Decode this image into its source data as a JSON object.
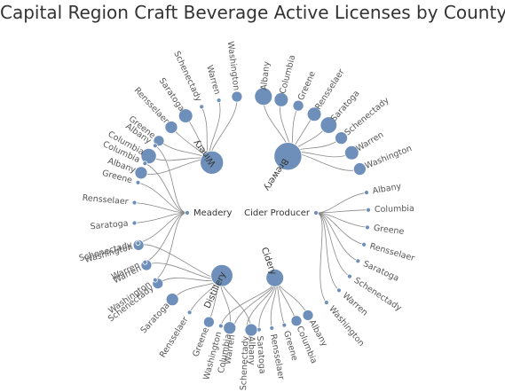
{
  "chart_data": {
    "type": "radial-tree",
    "title": "Capital Region Craft Beverage Active Licenses by County",
    "colors": {
      "node": "#6d8fb9",
      "node_stroke": "#ffffff",
      "link": "#888888"
    },
    "groups": [
      {
        "name": "Winery",
        "counties": [
          "Albany",
          "Columbia",
          "Greene",
          "Rensselaer",
          "Saratoga",
          "Schenectady",
          "Warren",
          "Washington"
        ],
        "values": [
          3,
          5,
          2,
          3,
          4,
          1,
          1,
          2
        ]
      },
      {
        "name": "Brewery",
        "counties": [
          "Albany",
          "Columbia",
          "Greene",
          "Rensselaer",
          "Saratoga",
          "Schenectady",
          "Warren",
          "Washington"
        ],
        "values": [
          7,
          4,
          2,
          4,
          6,
          3,
          4,
          3
        ]
      },
      {
        "name": "Cider Producer",
        "counties": [
          "Albany",
          "Columbia",
          "Greene",
          "Rensselaer",
          "Saratoga",
          "Schenectady",
          "Warren",
          "Washington"
        ],
        "values": [
          1,
          1,
          1,
          1,
          1,
          1,
          1,
          1
        ]
      },
      {
        "name": "Cidery",
        "counties": [
          "Albany",
          "Columbia",
          "Greene",
          "Rensselaer",
          "Saratoga",
          "Schenectady",
          "Warren",
          "Washington"
        ],
        "values": [
          2,
          2,
          1,
          1,
          1,
          1,
          1,
          1
        ]
      },
      {
        "name": "Distillery",
        "counties": [
          "Albany",
          "Columbia",
          "Greene",
          "Rensselaer",
          "Saratoga",
          "Schenectady",
          "Warren",
          "Washington"
        ],
        "values": [
          3,
          3,
          2,
          1,
          3,
          2,
          2,
          2
        ]
      },
      {
        "name": "Meadery",
        "counties": [
          "Albany",
          "Columbia",
          "Greene",
          "Rensselaer",
          "Saratoga",
          "Schenectady",
          "Warren",
          "Washington"
        ],
        "values": [
          1,
          1,
          1,
          1,
          1,
          1,
          1,
          1
        ]
      }
    ]
  }
}
